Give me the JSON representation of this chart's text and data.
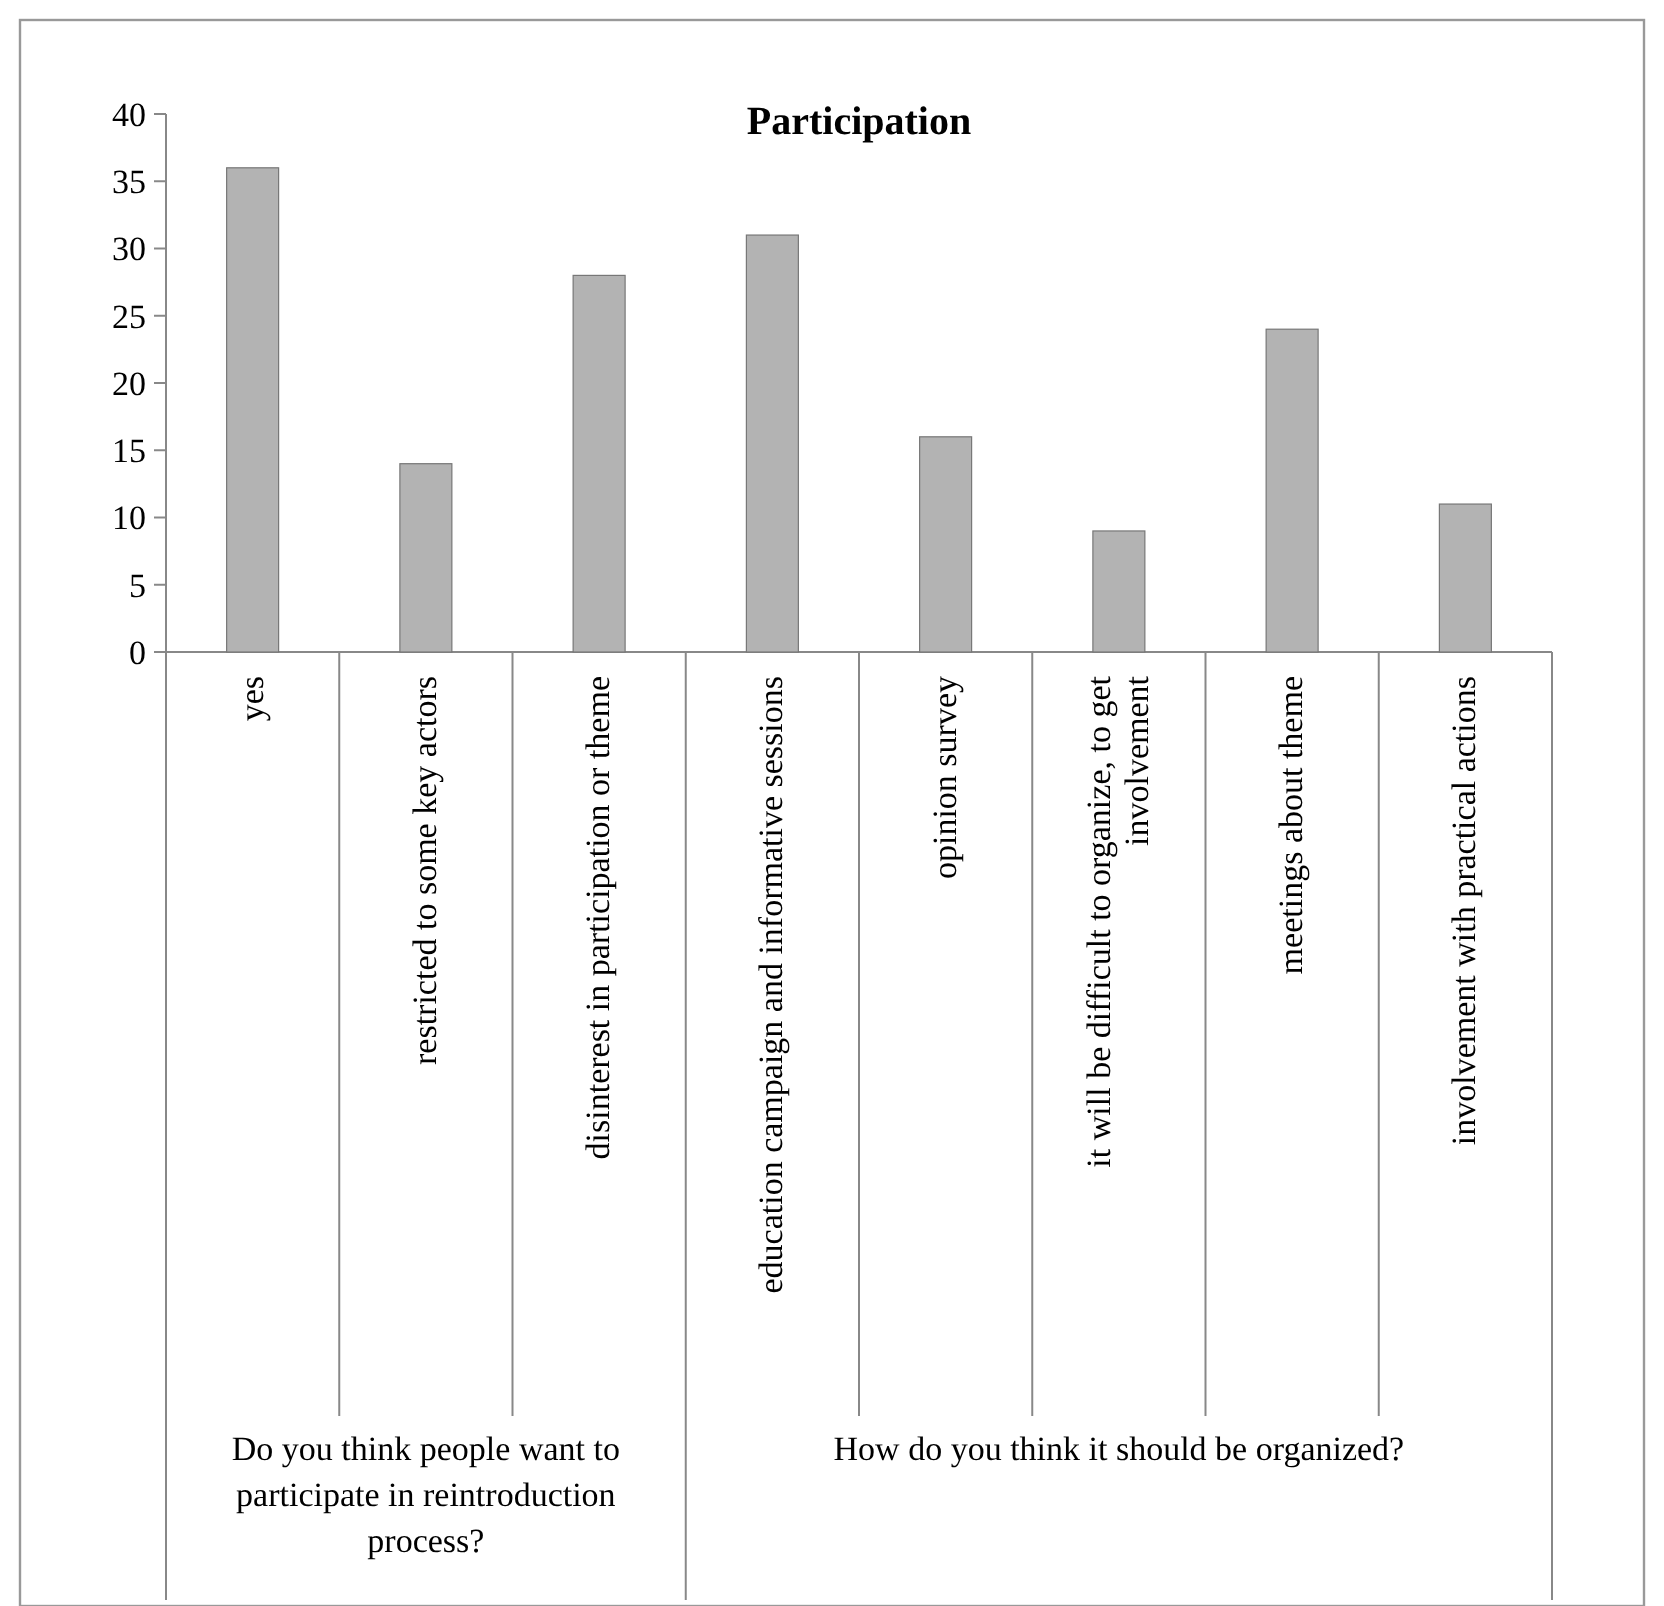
{
  "chart_data": {
    "type": "bar",
    "title": "Participation",
    "categories": [
      "yes",
      "restricted to some key actors",
      "disinterest in participation or theme",
      "education campaign and informative sessions",
      "opinion survey",
      "it will be difficult to organize, to get involvement",
      "meetings about theme",
      "involvement with practical actions"
    ],
    "values": [
      36,
      14,
      28,
      31,
      16,
      9,
      24,
      11
    ],
    "color": "#b3b3b3",
    "ylim": [
      0,
      40
    ],
    "yticks": [
      0,
      5,
      10,
      15,
      20,
      25,
      30,
      35,
      40
    ],
    "grid": false,
    "annotations": [
      "Do you think people want to participate in reintroduction process?",
      "How do you think it should be organized?"
    ]
  }
}
